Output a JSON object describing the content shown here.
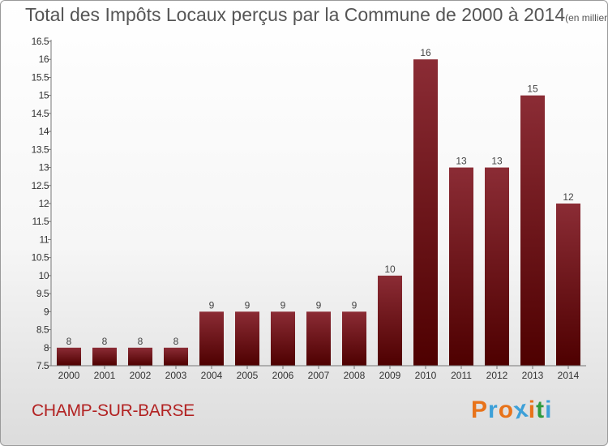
{
  "chart_data": {
    "type": "bar",
    "title": "Total des Impôts Locaux perçus par la Commune de 2000 à 2014",
    "unit_label": "(en milliers d'€)",
    "categories": [
      "2000",
      "2001",
      "2002",
      "2003",
      "2004",
      "2005",
      "2006",
      "2007",
      "2008",
      "2009",
      "2010",
      "2011",
      "2012",
      "2013",
      "2014"
    ],
    "values": [
      8,
      8,
      8,
      8,
      9,
      9,
      9,
      9,
      9,
      10,
      16,
      13,
      13,
      15,
      12
    ],
    "ylim": [
      7.5,
      16.5
    ],
    "yticks": [
      "7.5",
      "8",
      "8.5",
      "9",
      "9.5",
      "10",
      "10.5",
      "11",
      "11.5",
      "12",
      "12.5",
      "13",
      "13.5",
      "14",
      "14.5",
      "15",
      "15.5",
      "16",
      "16.5"
    ],
    "xlabel": "",
    "ylabel": "",
    "grid": false,
    "bar_color_top": "#8b2c35",
    "bar_color_bottom": "#4e0000"
  },
  "footer": {
    "commune": "CHAMP-SUR-BARSE",
    "logo_text": "Proxiti",
    "logo_colors": [
      "#e8731a",
      "#3da0d8",
      "#e8731a",
      "#3da0d8",
      "#e8731a",
      "#2e9a3e",
      "#3da0d8"
    ]
  }
}
